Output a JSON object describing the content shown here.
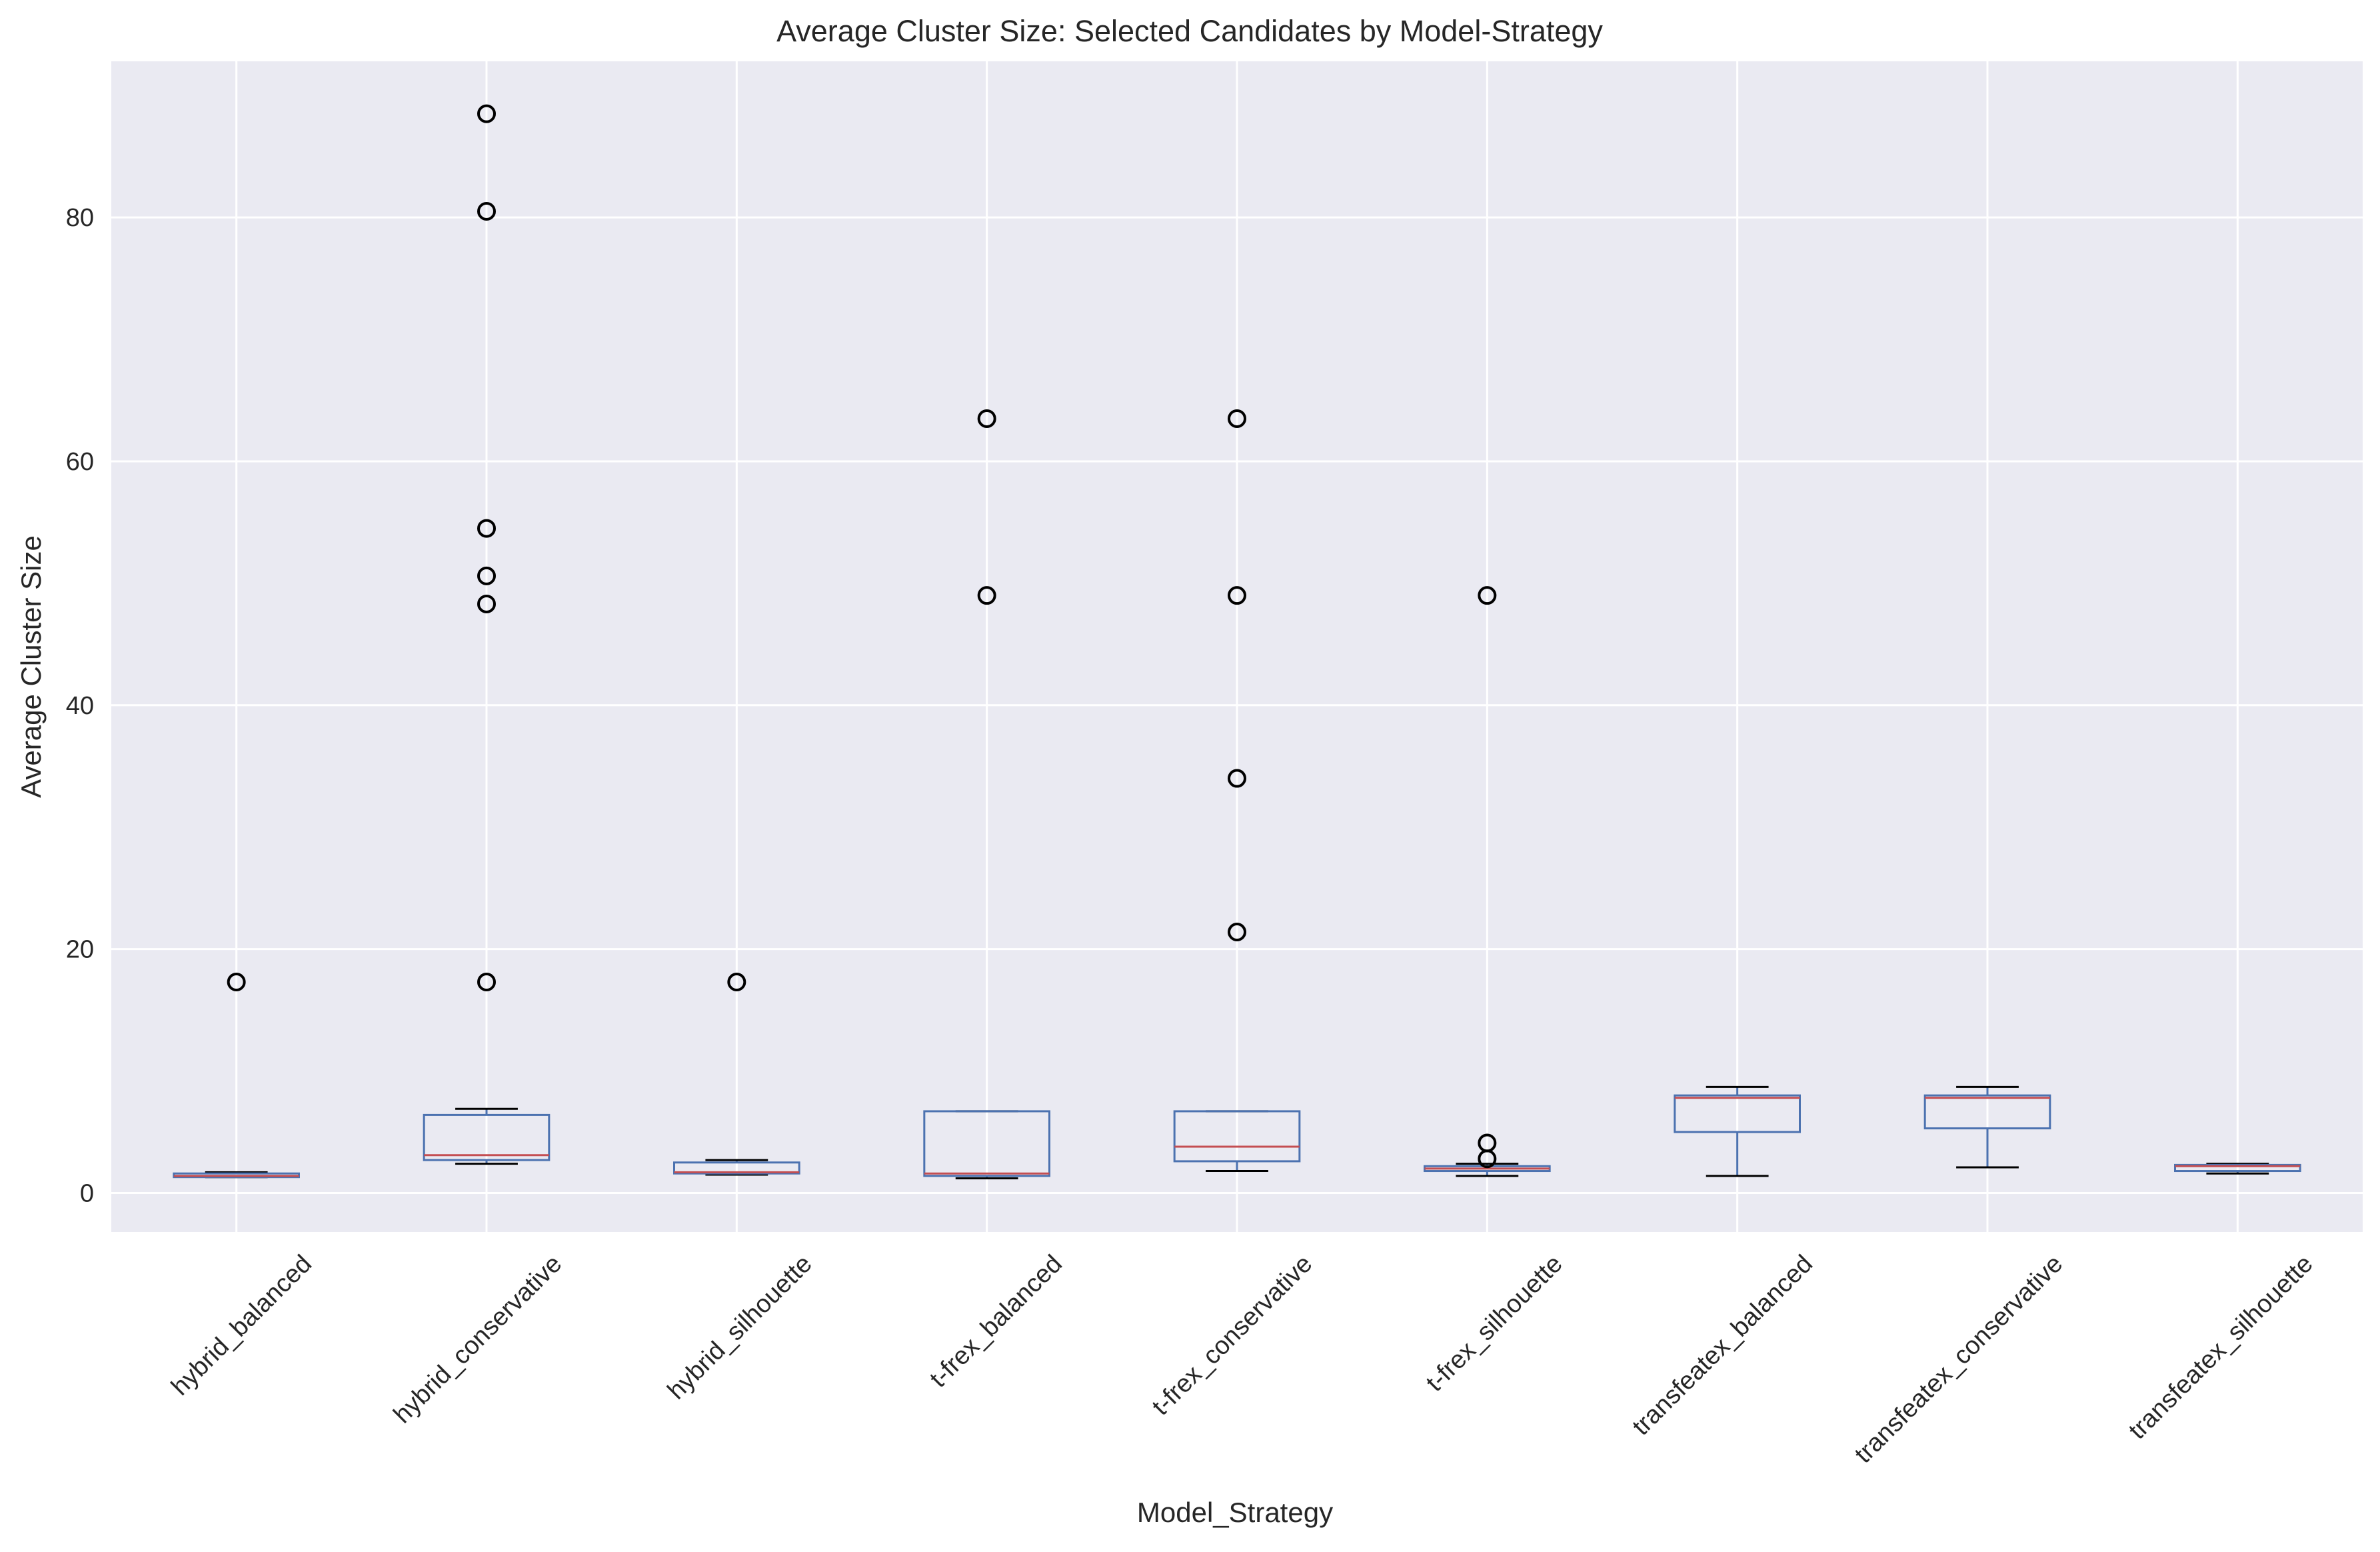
{
  "chart_data": {
    "type": "box",
    "title": "Average Cluster Size: Selected Candidates by Model-Strategy",
    "xlabel": "Model_Strategy",
    "ylabel": "Average Cluster Size",
    "ylim": [
      -3.2,
      92.8
    ],
    "yticks": [
      0,
      20,
      40,
      60,
      80
    ],
    "grid": true,
    "legend": "none",
    "colors": {
      "plot_background": "#eaeaf2",
      "grid": "#ffffff",
      "box": "#4c72b0",
      "median": "#c44e52",
      "cap": "#000000",
      "flier": "#000000"
    },
    "categories": [
      "hybrid_balanced",
      "hybrid_conservative",
      "hybrid_silhouette",
      "t-frex_balanced",
      "t-frex_conservative",
      "t-frex_silhouette",
      "transfeatex_balanced",
      "transfeatex_conservative",
      "transfeatex_silhouette"
    ],
    "boxes": [
      {
        "whislo": 1.3,
        "q1": 1.3,
        "med": 1.4,
        "q3": 1.6,
        "whishi": 1.7,
        "fliers": [
          17.3
        ]
      },
      {
        "whislo": 2.4,
        "q1": 2.7,
        "med": 3.1,
        "q3": 6.4,
        "whishi": 6.9,
        "fliers": [
          17.3,
          48.3,
          50.6,
          54.5,
          80.5,
          88.5
        ]
      },
      {
        "whislo": 1.5,
        "q1": 1.6,
        "med": 1.7,
        "q3": 2.5,
        "whishi": 2.7,
        "fliers": [
          17.3
        ]
      },
      {
        "whislo": 1.2,
        "q1": 1.4,
        "med": 1.6,
        "q3": 6.7,
        "whishi": 6.7,
        "fliers": [
          49.0,
          63.5
        ]
      },
      {
        "whislo": 1.8,
        "q1": 2.6,
        "med": 3.8,
        "q3": 6.7,
        "whishi": 6.7,
        "fliers": [
          21.4,
          34.0,
          49.0,
          63.5
        ]
      },
      {
        "whislo": 1.4,
        "q1": 1.8,
        "med": 2.0,
        "q3": 2.2,
        "whishi": 2.4,
        "fliers": [
          2.8,
          4.1,
          49.0
        ]
      },
      {
        "whislo": 1.4,
        "q1": 5.0,
        "med": 7.8,
        "q3": 8.0,
        "whishi": 8.7,
        "fliers": []
      },
      {
        "whislo": 2.1,
        "q1": 5.3,
        "med": 7.8,
        "q3": 8.0,
        "whishi": 8.7,
        "fliers": []
      },
      {
        "whislo": 1.6,
        "q1": 1.8,
        "med": 2.2,
        "q3": 2.3,
        "whishi": 2.4,
        "fliers": []
      }
    ]
  }
}
